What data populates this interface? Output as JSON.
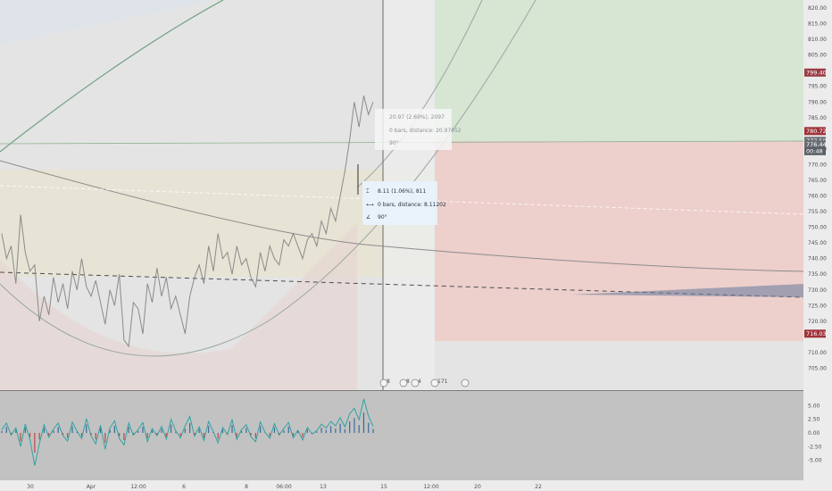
{
  "chart_data": {
    "type": "candlestick",
    "price_axis": {
      "ylim": [
        700.0,
        822.0
      ],
      "ticks": [
        "820.00",
        "815.00",
        "810.00",
        "805.00",
        "795.00",
        "790.00",
        "785.00",
        "775.00",
        "770.00",
        "765.00",
        "760.00",
        "755.00",
        "750.00",
        "745.00",
        "740.00",
        "735.00",
        "730.00",
        "725.00",
        "720.00",
        "710.00",
        "705.00"
      ]
    },
    "price_badges": [
      {
        "value": "799.40",
        "price": 799.4,
        "color": "#9a3b44"
      },
      {
        "value": "780.72",
        "price": 780.72,
        "color": "#a0333b"
      },
      {
        "value": "777.59",
        "price": 777.59,
        "color": "#6a6e74"
      },
      {
        "value": "776.44",
        "price": 776.44,
        "color": "#6a6e74"
      },
      {
        "value": "00:48",
        "price": 774.3,
        "color": "#5b6066"
      },
      {
        "value": "716.03",
        "price": 716.03,
        "color": "#a0333b"
      }
    ],
    "oscillator_axis": {
      "ylim": [
        -8.0,
        7.0
      ],
      "ticks": [
        "5.00",
        "2.50",
        "0.00",
        "-2.50",
        "-5.00"
      ]
    },
    "x_labels": [
      "30",
      "Apr",
      "12:00",
      "6",
      "8",
      "06:00",
      "13",
      "15",
      "12:00",
      "20",
      "22"
    ],
    "ruler_primary": [
      "8.11 (1.06%), 811",
      "0 bars, distance: 8.11202",
      "90°"
    ],
    "ruler_secondary": [
      "20.97 (2.69%), 2097",
      "0 bars, distance: 20.97052",
      "90°"
    ],
    "event_markers": [
      "8",
      "8",
      "4",
      "171"
    ],
    "price_series_description_free": true,
    "price_series": [
      [
        0,
        748
      ],
      [
        1,
        740
      ],
      [
        2,
        744
      ],
      [
        3,
        732
      ],
      [
        4,
        754
      ],
      [
        5,
        742
      ],
      [
        6,
        736
      ],
      [
        7,
        738
      ],
      [
        8,
        720
      ],
      [
        9,
        728
      ],
      [
        10,
        722
      ],
      [
        11,
        734
      ],
      [
        12,
        726
      ],
      [
        13,
        732
      ],
      [
        14,
        724
      ],
      [
        15,
        736
      ],
      [
        16,
        730
      ],
      [
        17,
        740
      ],
      [
        18,
        731
      ],
      [
        19,
        728
      ],
      [
        20,
        733
      ],
      [
        21,
        726
      ],
      [
        22,
        719
      ],
      [
        23,
        730
      ],
      [
        24,
        725
      ],
      [
        25,
        735
      ],
      [
        26,
        714
      ],
      [
        27,
        712
      ],
      [
        28,
        726
      ],
      [
        29,
        724
      ],
      [
        30,
        716
      ],
      [
        31,
        732
      ],
      [
        32,
        726
      ],
      [
        33,
        737
      ],
      [
        34,
        728
      ],
      [
        35,
        734
      ],
      [
        36,
        724
      ],
      [
        37,
        728
      ],
      [
        38,
        722
      ],
      [
        39,
        716
      ],
      [
        40,
        728
      ],
      [
        41,
        734
      ],
      [
        42,
        738
      ],
      [
        43,
        732
      ],
      [
        44,
        744
      ],
      [
        45,
        736
      ],
      [
        46,
        748
      ],
      [
        47,
        740
      ],
      [
        48,
        742
      ],
      [
        49,
        735
      ],
      [
        50,
        744
      ],
      [
        51,
        738
      ],
      [
        52,
        740
      ],
      [
        53,
        734
      ],
      [
        54,
        731
      ],
      [
        55,
        742
      ],
      [
        56,
        736
      ],
      [
        57,
        744
      ],
      [
        58,
        740
      ],
      [
        59,
        738
      ],
      [
        60,
        746
      ],
      [
        61,
        744
      ],
      [
        62,
        748
      ],
      [
        63,
        744
      ],
      [
        64,
        740
      ],
      [
        65,
        746
      ],
      [
        66,
        748
      ],
      [
        67,
        744
      ],
      [
        68,
        752
      ],
      [
        69,
        748
      ],
      [
        70,
        756
      ],
      [
        71,
        752
      ],
      [
        72,
        760
      ],
      [
        73,
        768
      ],
      [
        74,
        778
      ],
      [
        75,
        790
      ],
      [
        76,
        782
      ],
      [
        77,
        792
      ],
      [
        78,
        786
      ],
      [
        79,
        790
      ]
    ],
    "oscillator_series": [
      [
        0,
        0.6
      ],
      [
        1,
        1.8
      ],
      [
        2,
        -0.4
      ],
      [
        3,
        0.9
      ],
      [
        4,
        -2.5
      ],
      [
        5,
        1.6
      ],
      [
        6,
        -1.2
      ],
      [
        7,
        -6.0
      ],
      [
        8,
        -2.0
      ],
      [
        9,
        1.5
      ],
      [
        10,
        -0.8
      ],
      [
        11,
        0.7
      ],
      [
        12,
        1.8
      ],
      [
        13,
        -0.5
      ],
      [
        14,
        -1.5
      ],
      [
        15,
        2.0
      ],
      [
        16,
        0.3
      ],
      [
        17,
        -1.0
      ],
      [
        18,
        2.6
      ],
      [
        19,
        -0.6
      ],
      [
        20,
        -2.0
      ],
      [
        21,
        1.4
      ],
      [
        22,
        -3.0
      ],
      [
        23,
        0.9
      ],
      [
        24,
        2.2
      ],
      [
        25,
        -1.0
      ],
      [
        26,
        -2.2
      ],
      [
        27,
        1.8
      ],
      [
        28,
        -0.4
      ],
      [
        29,
        0.6
      ],
      [
        30,
        1.9
      ],
      [
        31,
        -1.6
      ],
      [
        32,
        0.8
      ],
      [
        33,
        -0.5
      ],
      [
        34,
        1.2
      ],
      [
        35,
        -1.1
      ],
      [
        36,
        2.5
      ],
      [
        37,
        0.4
      ],
      [
        38,
        -0.9
      ],
      [
        39,
        1.3
      ],
      [
        40,
        3.0
      ],
      [
        41,
        -0.6
      ],
      [
        42,
        1.1
      ],
      [
        43,
        -1.4
      ],
      [
        44,
        2.1
      ],
      [
        45,
        0.2
      ],
      [
        46,
        -1.8
      ],
      [
        47,
        1.0
      ],
      [
        48,
        -0.3
      ],
      [
        49,
        2.4
      ],
      [
        50,
        -1.2
      ],
      [
        51,
        0.6
      ],
      [
        52,
        1.5
      ],
      [
        53,
        -0.7
      ],
      [
        54,
        -1.6
      ],
      [
        55,
        2.0
      ],
      [
        56,
        0.1
      ],
      [
        57,
        -1.0
      ],
      [
        58,
        1.7
      ],
      [
        59,
        -0.4
      ],
      [
        60,
        0.8
      ],
      [
        61,
        1.9
      ],
      [
        62,
        -0.9
      ],
      [
        63,
        0.5
      ],
      [
        64,
        -1.3
      ],
      [
        65,
        1.0
      ],
      [
        66,
        -0.2
      ],
      [
        67,
        0.4
      ],
      [
        68,
        1.6
      ],
      [
        69,
        0.9
      ],
      [
        70,
        2.1
      ],
      [
        71,
        1.3
      ],
      [
        72,
        2.8
      ],
      [
        73,
        1.1
      ],
      [
        74,
        3.5
      ],
      [
        75,
        4.5
      ],
      [
        76,
        2.4
      ],
      [
        77,
        6.2
      ],
      [
        78,
        3.1
      ],
      [
        79,
        1.2
      ]
    ]
  }
}
